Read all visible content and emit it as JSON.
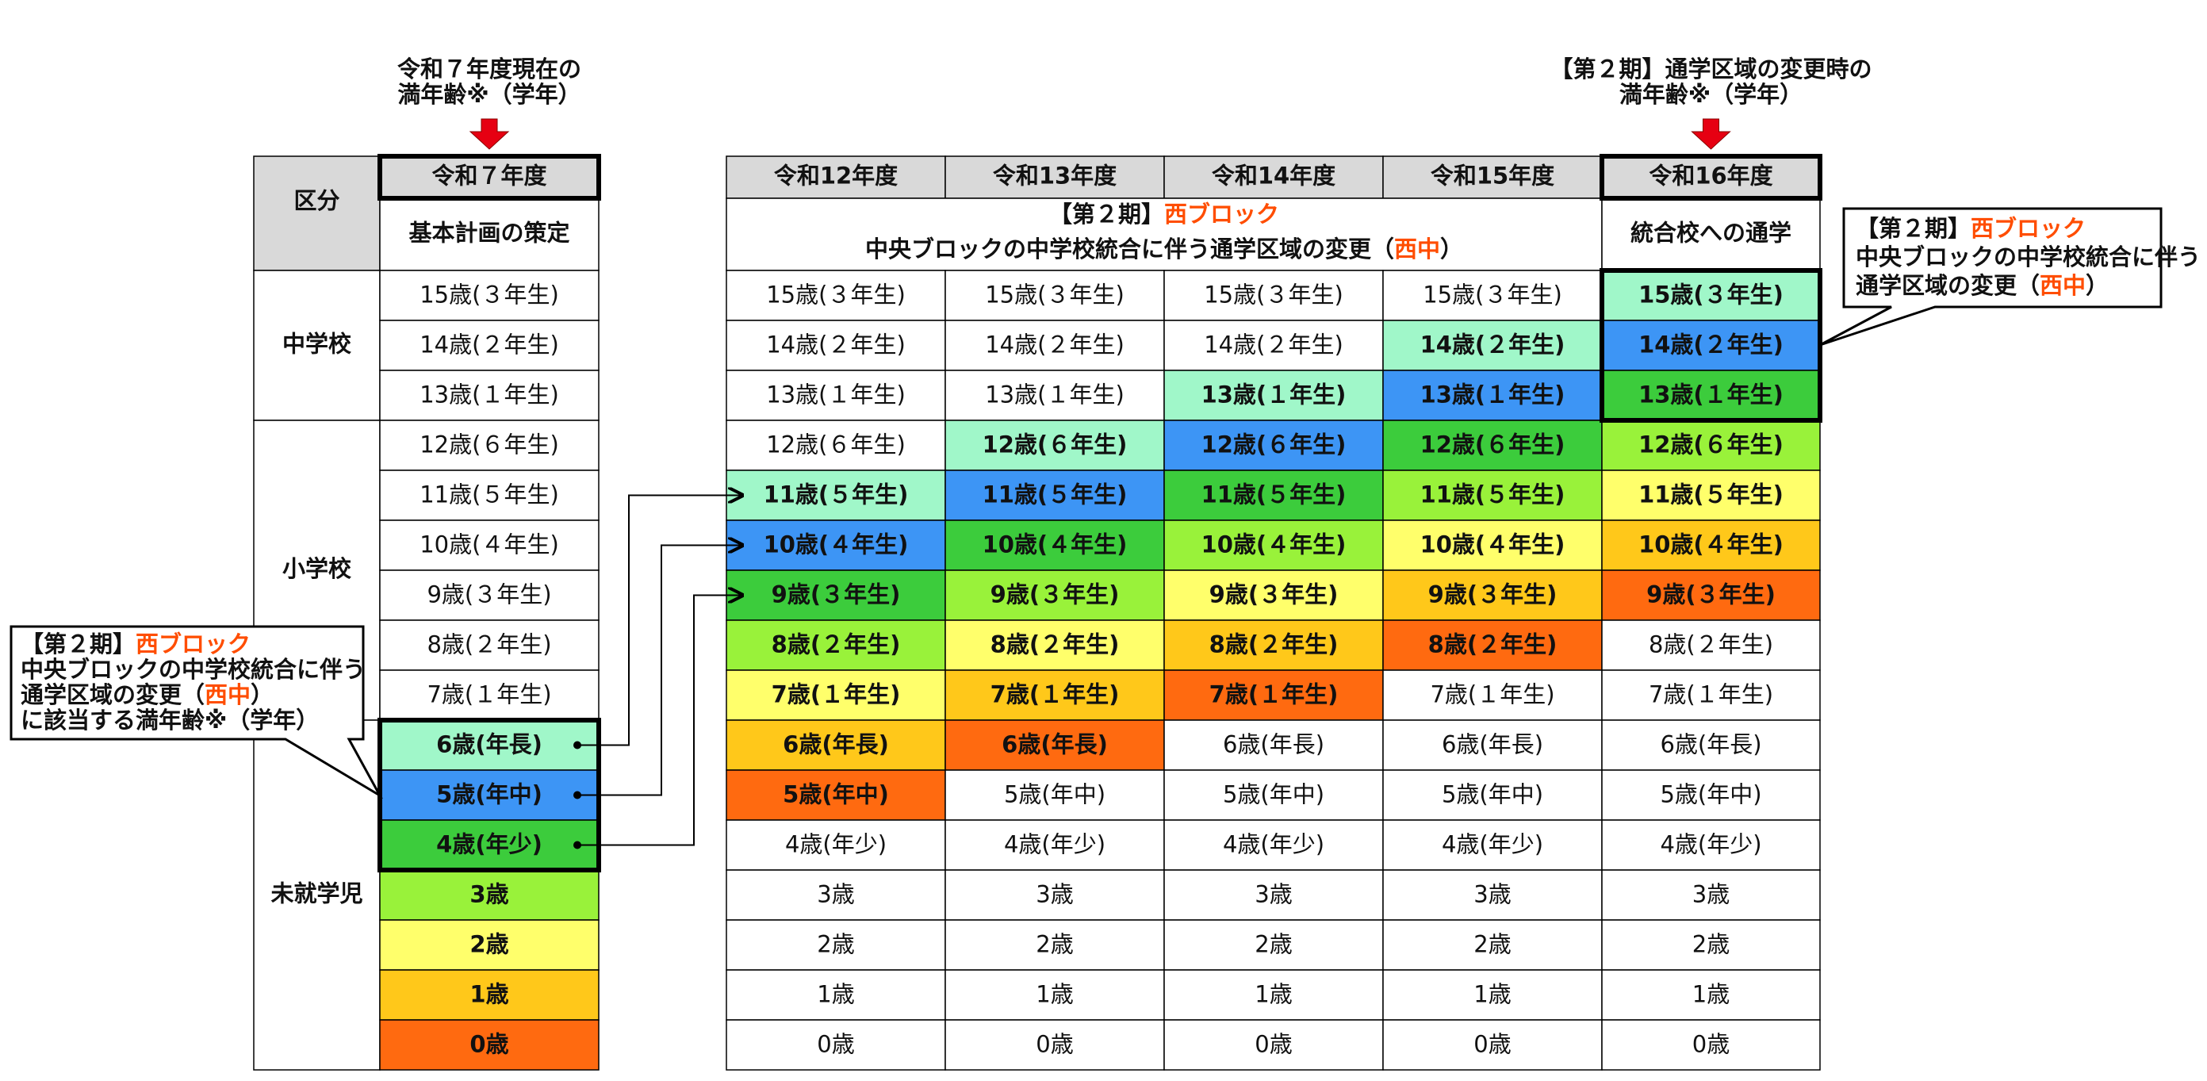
{
  "left_note": {
    "lines": [
      "令和７年度現在の",
      "満年齢※（学年）"
    ]
  },
  "right_note": {
    "lines": [
      "【第２期】通学区域の変更時の",
      "満年齢※（学年）"
    ]
  },
  "palette": [
    "#a0f7c9",
    "#3d95f5",
    "#3ccc3c",
    "#99f23a",
    "#ffff6b",
    "#ffc81a",
    "#ff6a10"
  ],
  "table": {
    "corner": "区分",
    "current_year": "令和７年度",
    "current_plan": "基本計画の策定",
    "years": [
      "令和12年度",
      "令和13年度",
      "令和14年度",
      "令和15年度",
      "令和16年度"
    ],
    "merged": {
      "line1": [
        {
          "text": "【第２期】"
        },
        {
          "text": "西ブロック",
          "highlight": true
        }
      ],
      "line2": [
        {
          "text": "中央ブロックの中学校統合に伴う通学区域の変更（"
        },
        {
          "text": "西中",
          "highlight": true
        },
        {
          "text": "）"
        }
      ]
    },
    "last_plan": "統合校への通学",
    "groups": [
      {
        "label": "中学校",
        "from": 0,
        "to": 2
      },
      {
        "label": "小学校",
        "from": 3,
        "to": 8
      },
      {
        "label": "未就学児",
        "from": 9,
        "to": 15
      }
    ],
    "rows": [
      {
        "label": "15歳(３年生)",
        "colors": [
          null,
          null,
          null,
          null,
          null,
          0
        ]
      },
      {
        "label": "14歳(２年生)",
        "colors": [
          null,
          null,
          null,
          null,
          0,
          1
        ]
      },
      {
        "label": "13歳(１年生)",
        "colors": [
          null,
          null,
          null,
          0,
          1,
          2
        ]
      },
      {
        "label": "12歳(６年生)",
        "colors": [
          null,
          null,
          0,
          1,
          2,
          3
        ]
      },
      {
        "label": "11歳(５年生)",
        "colors": [
          null,
          0,
          1,
          2,
          3,
          4
        ]
      },
      {
        "label": "10歳(４年生)",
        "colors": [
          null,
          1,
          2,
          3,
          4,
          5
        ]
      },
      {
        "label": "9歳(３年生)",
        "colors": [
          null,
          2,
          3,
          4,
          5,
          6
        ]
      },
      {
        "label": "8歳(２年生)",
        "colors": [
          null,
          3,
          4,
          5,
          6,
          null
        ]
      },
      {
        "label": "7歳(１年生)",
        "colors": [
          null,
          4,
          5,
          6,
          null,
          null
        ]
      },
      {
        "label": "6歳(年長)",
        "colors": [
          0,
          5,
          6,
          null,
          null,
          null
        ]
      },
      {
        "label": "5歳(年中)",
        "colors": [
          1,
          6,
          null,
          null,
          null,
          null
        ]
      },
      {
        "label": "4歳(年少)",
        "colors": [
          2,
          null,
          null,
          null,
          null,
          null
        ]
      },
      {
        "label": "3歳",
        "colors": [
          3,
          null,
          null,
          null,
          null,
          null
        ]
      },
      {
        "label": "2歳",
        "colors": [
          4,
          null,
          null,
          null,
          null,
          null
        ]
      },
      {
        "label": "1歳",
        "colors": [
          5,
          null,
          null,
          null,
          null,
          null
        ]
      },
      {
        "label": "0歳",
        "colors": [
          6,
          null,
          null,
          null,
          null,
          null
        ]
      }
    ]
  },
  "right_callout": {
    "lines": [
      [
        {
          "text": "【第２期】"
        },
        {
          "text": "西ブロック",
          "highlight": true
        }
      ],
      [
        {
          "text": "中央ブロックの中学校統合に伴う"
        }
      ],
      [
        {
          "text": "通学区域の変更（"
        },
        {
          "text": "西中",
          "highlight": true
        },
        {
          "text": "）"
        }
      ]
    ]
  },
  "left_callout": {
    "lines": [
      [
        {
          "text": "【第２期】"
        },
        {
          "text": "西ブロック",
          "highlight": true
        }
      ],
      [
        {
          "text": "中央ブロックの中学校統合に伴う"
        }
      ],
      [
        {
          "text": "通学区域の変更（"
        },
        {
          "text": "西中",
          "highlight": true
        },
        {
          "text": "）"
        }
      ],
      [
        {
          "text": "に該当する満年齢※（学年）"
        }
      ]
    ]
  }
}
